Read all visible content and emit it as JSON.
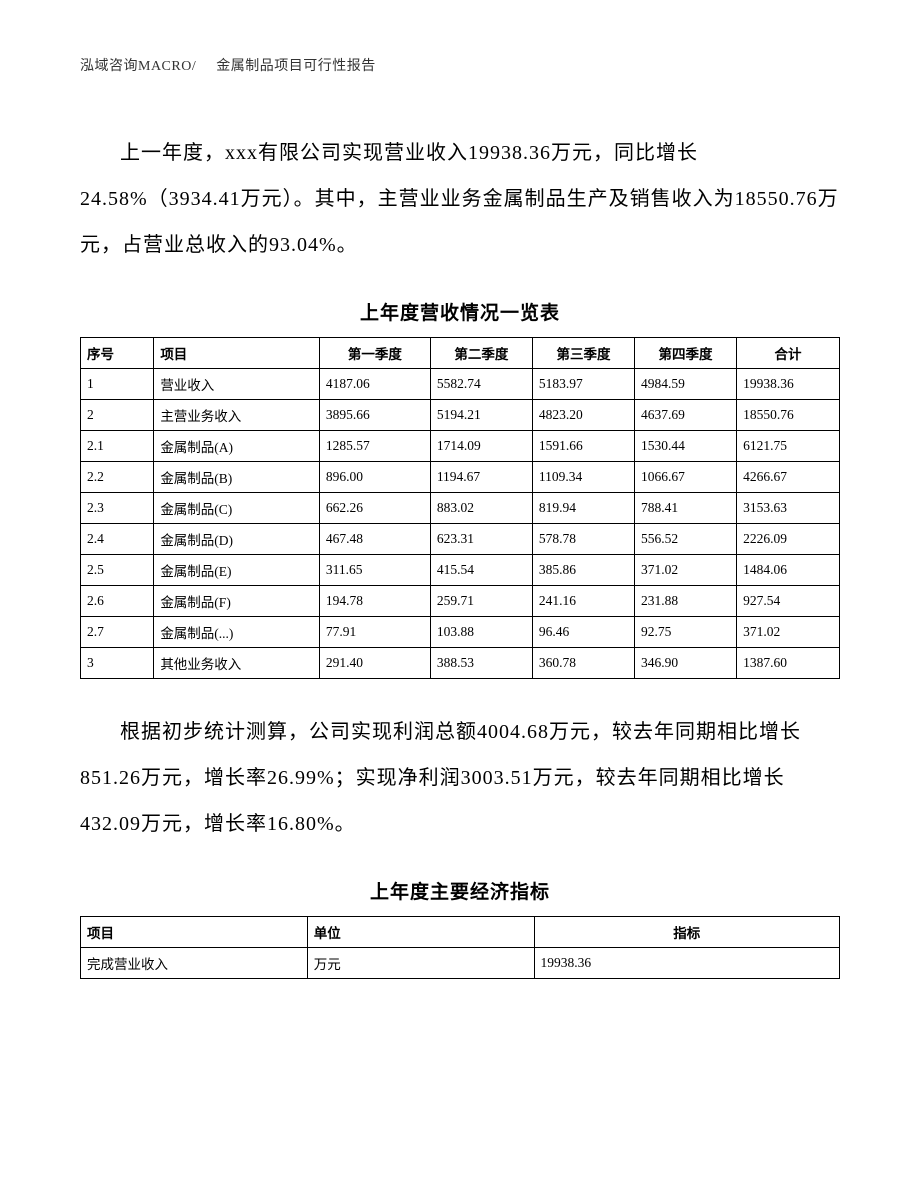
{
  "header": {
    "left": "泓域咨询MACRO/",
    "right": "金属制品项目可行性报告"
  },
  "paragraph1": "上一年度，xxx有限公司实现营业收入19938.36万元，同比增长24.58%（3934.41万元）。其中，主营业业务金属制品生产及销售收入为18550.76万元，占营业总收入的93.04%。",
  "table1": {
    "title": "上年度营收情况一览表",
    "headers": [
      "序号",
      "项目",
      "第一季度",
      "第二季度",
      "第三季度",
      "第四季度",
      "合计"
    ],
    "rows": [
      [
        "1",
        "营业收入",
        "4187.06",
        "5582.74",
        "5183.97",
        "4984.59",
        "19938.36"
      ],
      [
        "2",
        "主营业务收入",
        "3895.66",
        "5194.21",
        "4823.20",
        "4637.69",
        "18550.76"
      ],
      [
        "2.1",
        "金属制品(A)",
        "1285.57",
        "1714.09",
        "1591.66",
        "1530.44",
        "6121.75"
      ],
      [
        "2.2",
        "金属制品(B)",
        "896.00",
        "1194.67",
        "1109.34",
        "1066.67",
        "4266.67"
      ],
      [
        "2.3",
        "金属制品(C)",
        "662.26",
        "883.02",
        "819.94",
        "788.41",
        "3153.63"
      ],
      [
        "2.4",
        "金属制品(D)",
        "467.48",
        "623.31",
        "578.78",
        "556.52",
        "2226.09"
      ],
      [
        "2.5",
        "金属制品(E)",
        "311.65",
        "415.54",
        "385.86",
        "371.02",
        "1484.06"
      ],
      [
        "2.6",
        "金属制品(F)",
        "194.78",
        "259.71",
        "241.16",
        "231.88",
        "927.54"
      ],
      [
        "2.7",
        "金属制品(...)",
        "77.91",
        "103.88",
        "96.46",
        "92.75",
        "371.02"
      ],
      [
        "3",
        "其他业务收入",
        "291.40",
        "388.53",
        "360.78",
        "346.90",
        "1387.60"
      ]
    ]
  },
  "paragraph2": "根据初步统计测算，公司实现利润总额4004.68万元，较去年同期相比增长851.26万元，增长率26.99%；实现净利润3003.51万元，较去年同期相比增长432.09万元，增长率16.80%。",
  "table2": {
    "title": "上年度主要经济指标",
    "headers": [
      "项目",
      "单位",
      "指标"
    ],
    "rows": [
      [
        "完成营业收入",
        "万元",
        "19938.36"
      ]
    ]
  }
}
